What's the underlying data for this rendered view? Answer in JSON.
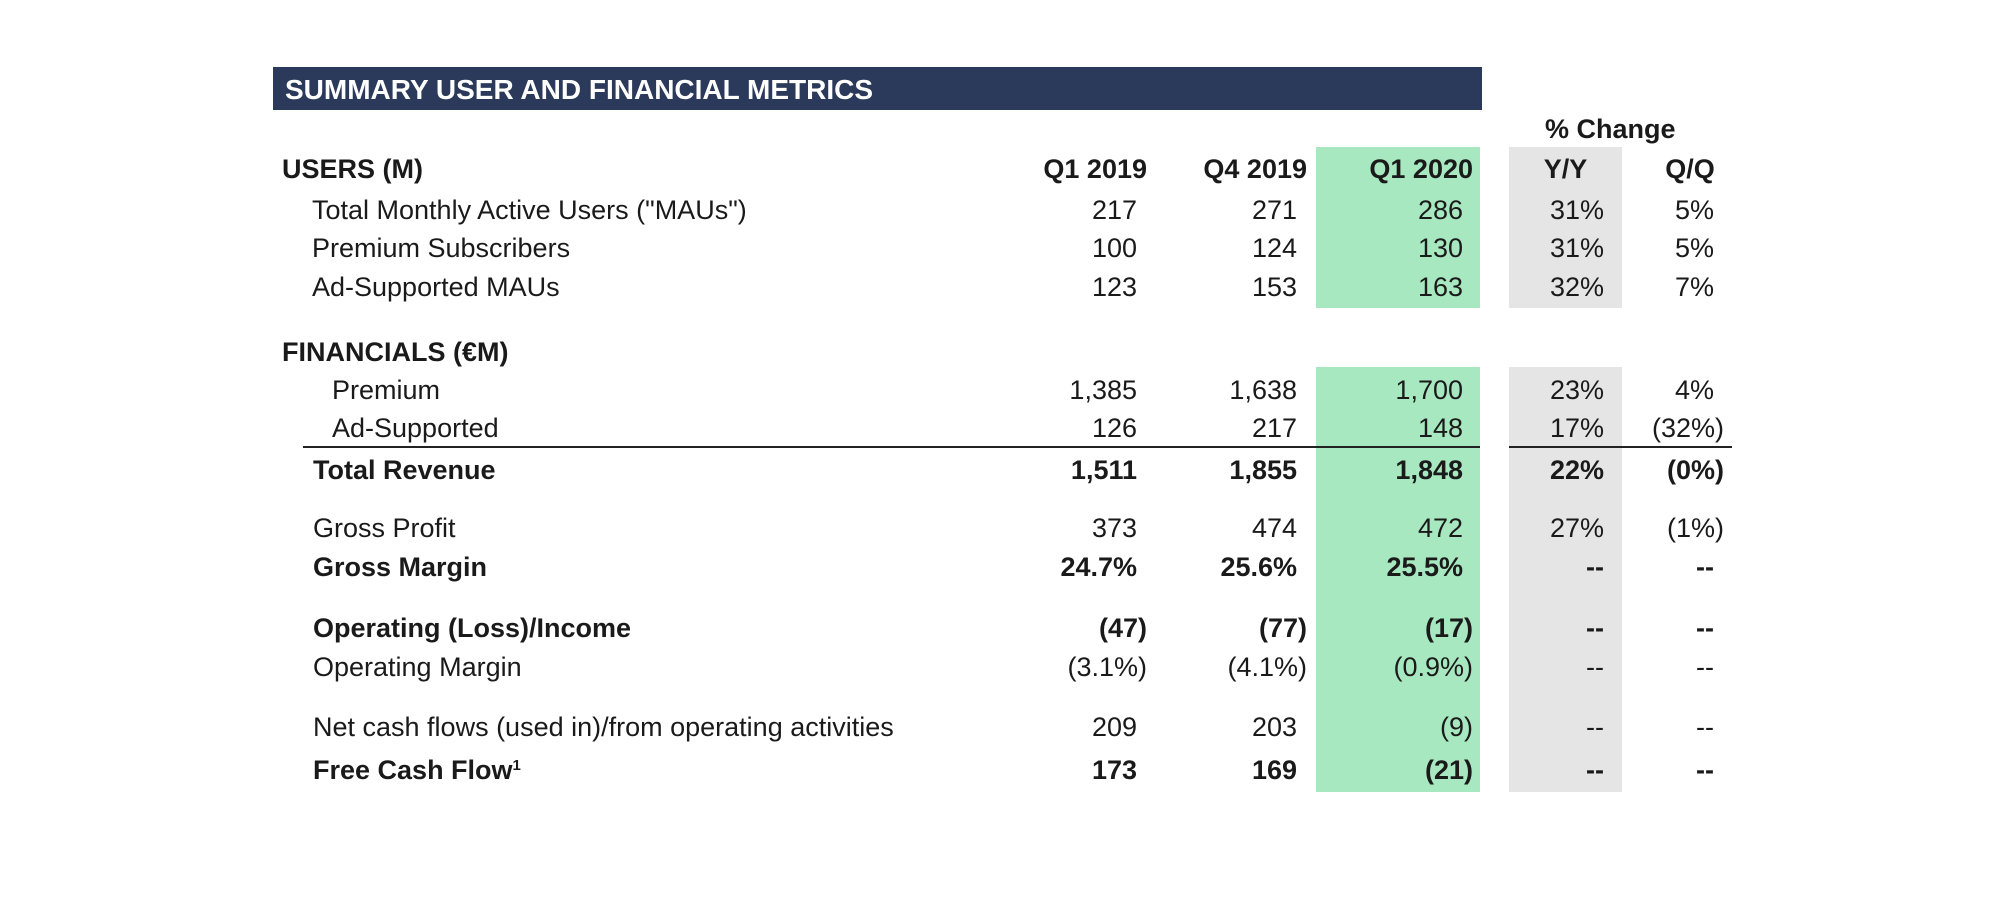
{
  "title": "SUMMARY USER AND FINANCIAL METRICS",
  "colors": {
    "header_bg": "#2b3a5a",
    "current_quarter_highlight": "#a8e8c0",
    "yoy_highlight": "#e6e5e6"
  },
  "columns": {
    "periods": [
      "Q1 2019",
      "Q4 2019",
      "Q1 2020"
    ],
    "change_group": "% Change",
    "change": [
      "Y/Y",
      "Q/Q"
    ]
  },
  "sections": {
    "users": {
      "heading": "USERS (M)",
      "rows": [
        {
          "label": "Total Monthly Active Users (\"MAUs\")",
          "values": [
            "217",
            "271",
            "286"
          ],
          "yoy": "31%",
          "qoq": "5%"
        },
        {
          "label": "Premium Subscribers",
          "values": [
            "100",
            "124",
            "130"
          ],
          "yoy": "31%",
          "qoq": "5%"
        },
        {
          "label": "Ad-Supported MAUs",
          "values": [
            "123",
            "153",
            "163"
          ],
          "yoy": "32%",
          "qoq": "7%"
        }
      ]
    },
    "financials": {
      "heading": "FINANCIALS (€M)",
      "rows": [
        {
          "label": "Premium",
          "values": [
            "1,385",
            "1,638",
            "1,700"
          ],
          "yoy": "23%",
          "qoq": "4%"
        },
        {
          "label": "Ad-Supported",
          "values": [
            "126",
            "217",
            "148"
          ],
          "yoy": "17%",
          "qoq": "(32%)"
        },
        {
          "label": "Total Revenue",
          "values": [
            "1,511",
            "1,855",
            "1,848"
          ],
          "yoy": "22%",
          "qoq": "(0%)",
          "bold": true
        },
        {
          "label": "Gross Profit",
          "values": [
            "373",
            "474",
            "472"
          ],
          "yoy": "27%",
          "qoq": "(1%)"
        },
        {
          "label": "Gross Margin",
          "values": [
            "24.7%",
            "25.6%",
            "25.5%"
          ],
          "yoy": "--",
          "qoq": "--",
          "bold": true
        },
        {
          "label": "Operating (Loss)/Income",
          "values": [
            "(47)",
            "(77)",
            "(17)"
          ],
          "yoy": "--",
          "qoq": "--",
          "bold": true
        },
        {
          "label": "Operating Margin",
          "values": [
            "(3.1%)",
            "(4.1%)",
            "(0.9%)"
          ],
          "yoy": "--",
          "qoq": "--"
        },
        {
          "label": "Net cash flows (used in)/from operating activities",
          "values": [
            "209",
            "203",
            "(9)"
          ],
          "yoy": "--",
          "qoq": "--"
        },
        {
          "label": "Free Cash Flow",
          "footnote": "1",
          "values": [
            "173",
            "169",
            "(21)"
          ],
          "yoy": "--",
          "qoq": "--",
          "bold": true
        }
      ]
    }
  }
}
